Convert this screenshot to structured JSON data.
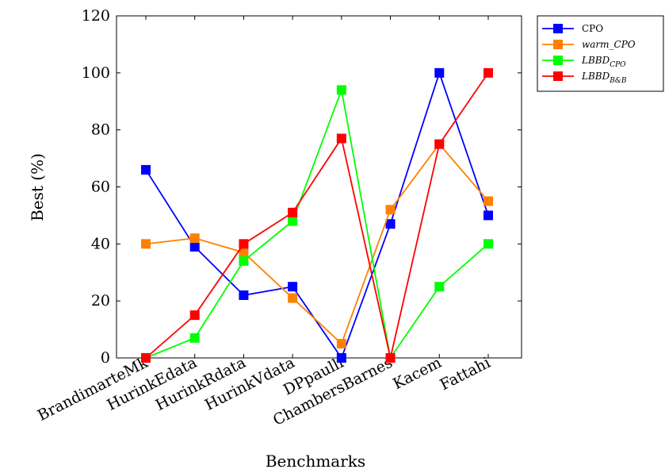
{
  "chart_data": {
    "type": "line",
    "title": "",
    "xlabel": "Benchmarks",
    "ylabel": "Best (%)",
    "categories": [
      "BrandimarteMk",
      "HurinkEdata",
      "HurinkRdata",
      "HurinkVdata",
      "DPpaulli",
      "ChambersBarnes",
      "Kacem",
      "Fattahi"
    ],
    "ylim": [
      0,
      120
    ],
    "yticks": [
      0,
      20,
      40,
      60,
      80,
      100,
      120
    ],
    "grid": false,
    "legend_position": "outside-top-right",
    "series": [
      {
        "name": "CPO",
        "name_base": "CPO",
        "name_sub": "",
        "math": false,
        "color": "#0000ff",
        "values": [
          66,
          39,
          22,
          25,
          0,
          47,
          100,
          50
        ]
      },
      {
        "name": "warm_CPO",
        "name_base": "warm_CPO",
        "name_sub": "",
        "math": true,
        "color": "#ff8000",
        "values": [
          40,
          42,
          37,
          21,
          5,
          52,
          75,
          55
        ]
      },
      {
        "name": "LBBD_CPO",
        "name_base": "LBBD",
        "name_sub": "CPO",
        "math": true,
        "color": "#00ff00",
        "values": [
          0,
          7,
          34,
          48,
          94,
          0,
          25,
          40
        ]
      },
      {
        "name": "LBBD_B&B",
        "name_base": "LBBD",
        "name_sub": "B&B",
        "math": true,
        "color": "#ff0000",
        "values": [
          0,
          15,
          40,
          51,
          77,
          0,
          75,
          100
        ]
      }
    ]
  }
}
